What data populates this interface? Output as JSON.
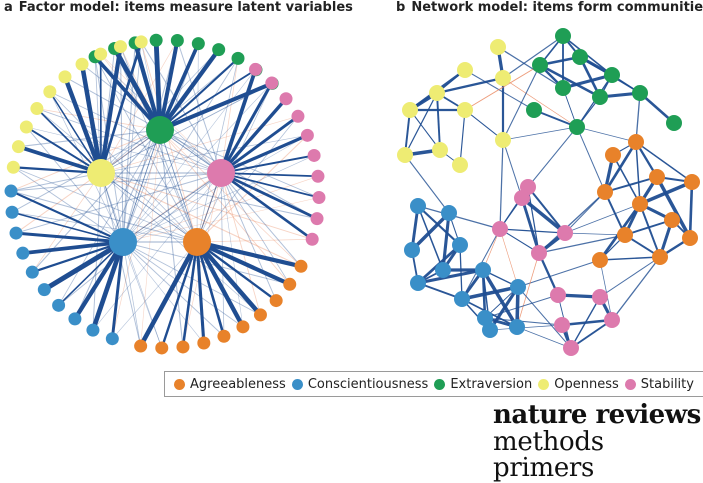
{
  "panels": {
    "a": {
      "tag": "a",
      "title": "Factor model: items measure latent variables"
    },
    "b": {
      "tag": "b",
      "title": "Network model: items form communities"
    }
  },
  "legend": [
    {
      "label": "Agreeableness",
      "color": "#e8822a"
    },
    {
      "label": "Conscientiousness",
      "color": "#3a8fc8"
    },
    {
      "label": "Extraversion",
      "color": "#1f9e55"
    },
    {
      "label": "Openness",
      "color": "#eeec73"
    },
    {
      "label": "Stability",
      "color": "#dd7aad"
    }
  ],
  "colors": {
    "agreeableness": "#e8822a",
    "conscientiousness": "#3a8fc8",
    "extraversion": "#1f9e55",
    "openness": "#eeec73",
    "stability": "#dd7aad",
    "positive_edge": "#1f4d91",
    "negative_edge": "#e9835a"
  },
  "brand": {
    "line1": "nature reviews",
    "line2": "methods primers"
  },
  "factor_model": {
    "factors": [
      "extraversion",
      "stability",
      "openness",
      "conscientiousness",
      "agreeableness"
    ],
    "items_per_factor": 10
  }
}
